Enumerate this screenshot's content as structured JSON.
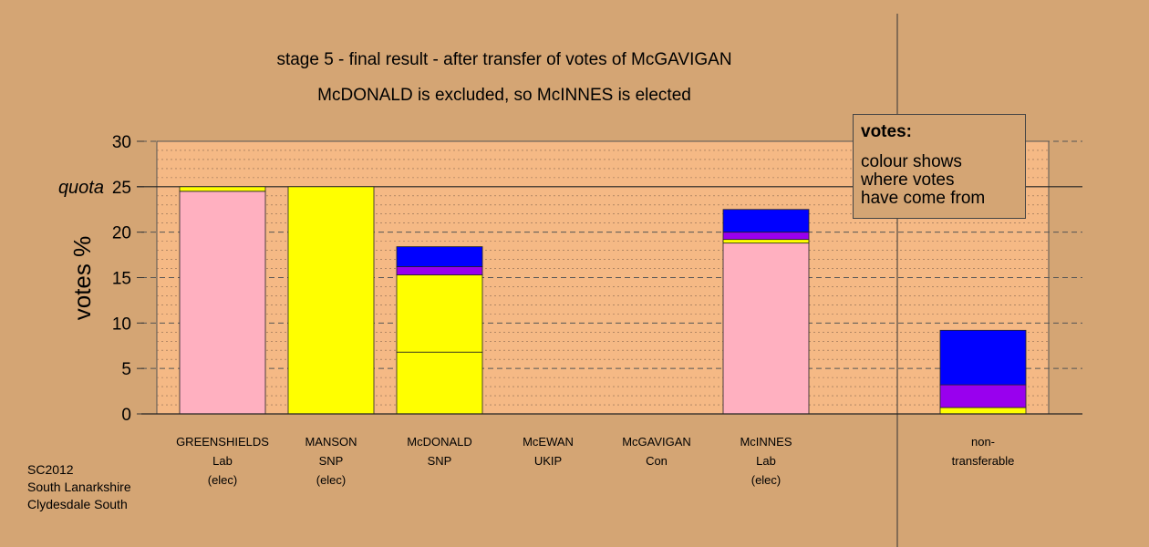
{
  "title_line1": "stage 5 - final result - after transfer of votes of McGAVIGAN",
  "title_line2": "McDONALD is excluded, so McINNES is elected",
  "legend": {
    "title": "votes:",
    "lines": [
      "colour shows",
      "where votes",
      "have come from"
    ]
  },
  "footer": [
    "SC2012",
    "South Lanarkshire",
    "Clydesdale South"
  ],
  "colors": {
    "background": "#d4a574",
    "plot": "#f5b985",
    "Lab": "#ffb0c0",
    "SNP": "#ffff00",
    "Con": "#0000ff",
    "UKIP": "#9900ee"
  },
  "chart_data": {
    "type": "bar",
    "stacked": true,
    "ylabel": "votes %",
    "ylim": [
      0,
      30
    ],
    "yticks": [
      0,
      5,
      10,
      15,
      20,
      25,
      30
    ],
    "quota": {
      "label": "quota",
      "value": 25
    },
    "grid": true,
    "categories": [
      {
        "lines": [
          "GREENSHIELDS",
          "Lab",
          "(elec)"
        ]
      },
      {
        "lines": [
          "MANSON",
          "SNP",
          "(elec)"
        ]
      },
      {
        "lines": [
          "McDONALD",
          "SNP"
        ]
      },
      {
        "lines": [
          "McEWAN",
          "UKIP"
        ]
      },
      {
        "lines": [
          "McGAVIGAN",
          "Con"
        ]
      },
      {
        "lines": [
          "McINNES",
          "Lab",
          "(elec)"
        ]
      },
      {
        "lines": [
          "non-",
          "transferable"
        ]
      }
    ],
    "bars": [
      {
        "segments": [
          {
            "source": "Lab",
            "value": 24.5
          },
          {
            "source": "SNP",
            "value": 0.5
          }
        ]
      },
      {
        "segments": [
          {
            "source": "SNP",
            "value": 25.0
          }
        ]
      },
      {
        "segments": [
          {
            "source": "SNP",
            "value": 6.8
          },
          {
            "source": "SNP",
            "value": 8.5
          },
          {
            "source": "UKIP",
            "value": 0.9
          },
          {
            "source": "Con",
            "value": 2.2
          }
        ]
      },
      {
        "segments": []
      },
      {
        "segments": []
      },
      {
        "segments": [
          {
            "source": "Lab",
            "value": 18.8
          },
          {
            "source": "SNP",
            "value": 0.4
          },
          {
            "source": "UKIP",
            "value": 0.8
          },
          {
            "source": "Con",
            "value": 2.5
          }
        ]
      },
      {
        "segments": [
          {
            "source": "SNP",
            "value": 0.7
          },
          {
            "source": "UKIP",
            "value": 2.5
          },
          {
            "source": "Con",
            "value": 6.0
          }
        ]
      }
    ]
  }
}
